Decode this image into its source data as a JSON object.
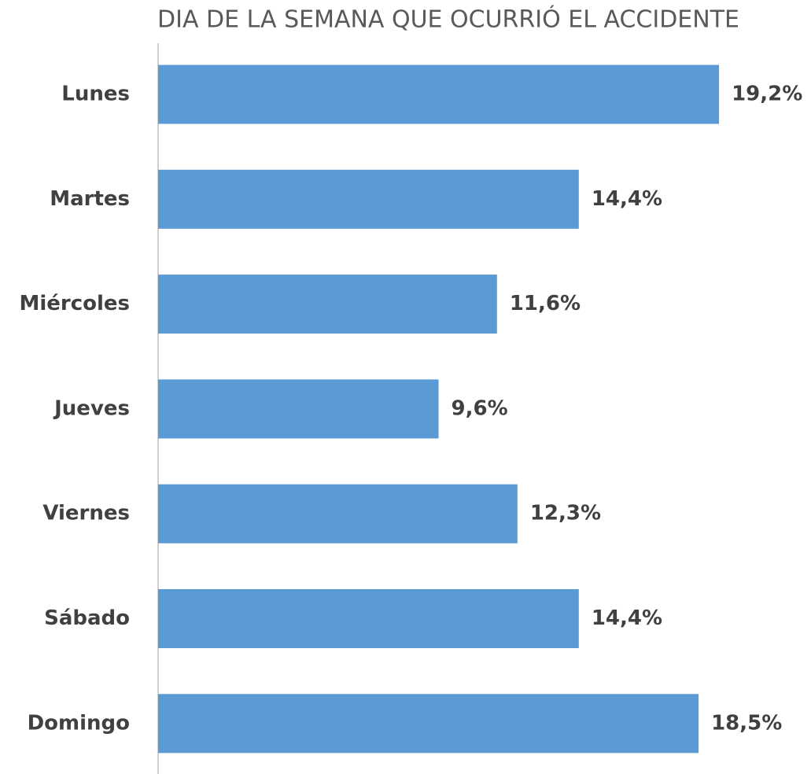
{
  "chart_data": {
    "type": "barh",
    "title": "DIA DE LA SEMANA QUE OCURRIÓ EL ACCIDENTE",
    "categories": [
      "Lunes",
      "Martes",
      "Miércoles",
      "Jueves",
      "Viernes",
      "Sábado",
      "Domingo"
    ],
    "values": [
      19.2,
      14.4,
      11.6,
      9.6,
      12.3,
      14.4,
      18.5
    ],
    "value_labels": [
      "19,2%",
      "14,4%",
      "11,6%",
      "9,6%",
      "12,3%",
      "14,4%",
      "18,5%"
    ],
    "color": "#5b9bd5"
  }
}
